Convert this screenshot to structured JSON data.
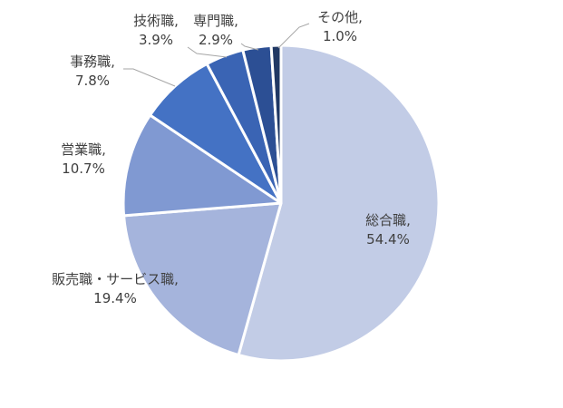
{
  "chart_data": {
    "type": "pie",
    "title": "",
    "slices": [
      {
        "label": "総合職,",
        "percent_label": "54.4%",
        "value": 54.4,
        "color": "#c2cce6"
      },
      {
        "label": "販売職・サービス職,",
        "percent_label": "19.4%",
        "value": 19.4,
        "color": "#a5b4dc"
      },
      {
        "label": "営業職,",
        "percent_label": "10.7%",
        "value": 10.7,
        "color": "#8099d2"
      },
      {
        "label": "事務職,",
        "percent_label": "7.8%",
        "value": 7.8,
        "color": "#4472c4"
      },
      {
        "label": "技術職,",
        "percent_label": "3.9%",
        "value": 3.9,
        "color": "#3a64b4"
      },
      {
        "label": "専門職,",
        "percent_label": "2.9%",
        "value": 2.9,
        "color": "#2c4f94"
      },
      {
        "label": "その他,",
        "percent_label": "1.0%",
        "value": 1.0,
        "color": "#203864"
      }
    ],
    "start_angle_deg": 0,
    "direction": "clockwise",
    "legend": "none",
    "slice_border_color": "#ffffff"
  }
}
